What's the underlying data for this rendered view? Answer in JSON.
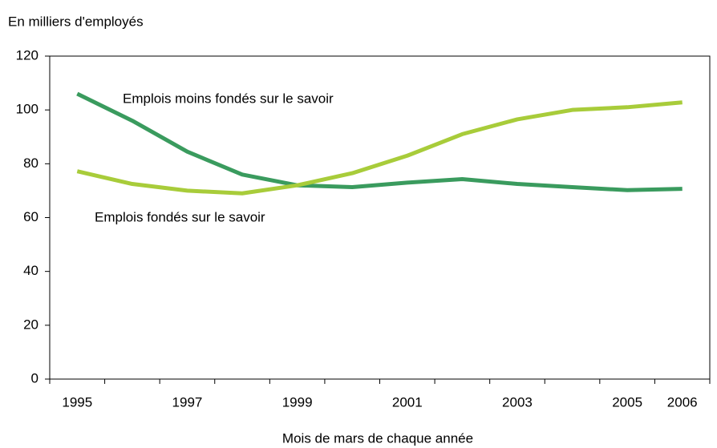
{
  "chart_data": {
    "type": "line",
    "ylabel": "En milliers d'employés",
    "xlabel": "Mois de mars de chaque année",
    "categories": [
      "1995",
      null,
      "1997",
      null,
      "1999",
      null,
      "2001",
      null,
      "2003",
      null,
      "2005",
      "2006"
    ],
    "series": [
      {
        "name": "Emplois moins fondés sur le savoir",
        "color": "#3a9b5e",
        "values": [
          106,
          96,
          84.5,
          76,
          72,
          71.3,
          73,
          74.3,
          72.5,
          71.3,
          70.2,
          70.7
        ]
      },
      {
        "name": "Emplois fondés sur le savoir",
        "color": "#a8cc3a",
        "values": [
          77.2,
          72.5,
          70,
          69,
          72,
          76.5,
          83,
          91,
          96.5,
          100,
          101,
          102.8
        ]
      }
    ],
    "ylim": [
      0,
      120
    ],
    "yticks": [
      0,
      20,
      40,
      60,
      80,
      100,
      120
    ],
    "grid": false
  }
}
